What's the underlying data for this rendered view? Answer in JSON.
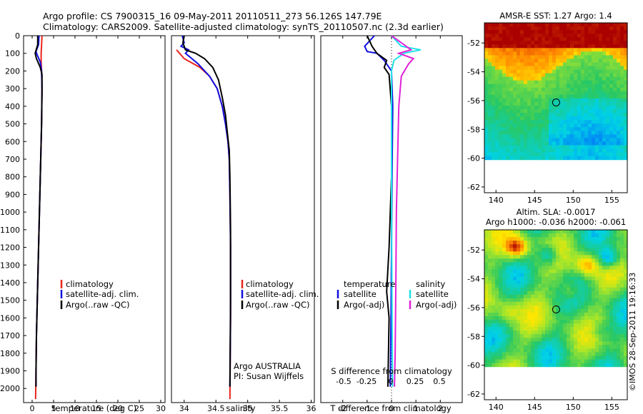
{
  "header": {
    "line1": "Argo profile: CS 7900315_16 09-May-2011 20110511_273 56.126S 147.79E",
    "line2": "Climatology: CARS2009. Satellite-adjusted climatology: synTS_20110507.nc (2.3d earlier)"
  },
  "footer": {
    "vertical_text": "©IMOS 28-Sep-2011 19:16:33"
  },
  "colors": {
    "red": "#e8241c",
    "blue": "#1010e0",
    "black": "#000000",
    "cyan": "#22e0e8",
    "magenta": "#e020d8"
  },
  "depth_axis": {
    "ylim": [
      0,
      2080
    ],
    "ticks": [
      0,
      100,
      200,
      300,
      400,
      500,
      600,
      700,
      800,
      900,
      1000,
      1100,
      1200,
      1300,
      1400,
      1500,
      1600,
      1700,
      1800,
      1900,
      2000
    ]
  },
  "chart_data": [
    {
      "type": "line",
      "id": "temperature",
      "xlabel": "temperature (deg C)",
      "xlim": [
        -2,
        31
      ],
      "ylim": [
        0,
        2080
      ],
      "x_ticks": [
        0,
        5,
        10,
        15,
        20,
        25,
        30
      ],
      "legend": [
        "climatology",
        "satellite-adj. clim.",
        "Argo(..raw -QC)"
      ],
      "series": [
        {
          "name": "climatology",
          "color": "red",
          "points": [
            [
              2.3,
              0
            ],
            [
              2.2,
              50
            ],
            [
              2.1,
              100
            ],
            [
              2.1,
              150
            ],
            [
              2.2,
              200
            ],
            [
              2.3,
              300
            ],
            [
              2.2,
              500
            ],
            [
              2.0,
              700
            ],
            [
              1.8,
              900
            ],
            [
              1.6,
              1100
            ],
            [
              1.4,
              1300
            ],
            [
              1.2,
              1500
            ],
            [
              1.0,
              1700
            ],
            [
              0.9,
              1900
            ],
            [
              0.8,
              2060
            ]
          ]
        },
        {
          "name": "satellite-adj. clim.",
          "color": "blue",
          "points": [
            [
              1.6,
              0
            ],
            [
              1.5,
              50
            ],
            [
              0.9,
              90
            ],
            [
              1.2,
              110
            ],
            [
              1.9,
              150
            ],
            [
              2.2,
              200
            ],
            [
              2.3,
              300
            ],
            [
              2.2,
              500
            ],
            [
              2.0,
              700
            ],
            [
              1.8,
              900
            ],
            [
              1.6,
              1100
            ],
            [
              1.4,
              1300
            ],
            [
              1.2,
              1500
            ],
            [
              1.0,
              1700
            ],
            [
              0.9,
              1900
            ],
            [
              0.9,
              1990
            ]
          ]
        },
        {
          "name": "Argo(..raw -QC)",
          "color": "black",
          "points": [
            [
              1.3,
              0
            ],
            [
              1.3,
              50
            ],
            [
              0.7,
              100
            ],
            [
              1.0,
              130
            ],
            [
              1.9,
              180
            ],
            [
              2.3,
              220
            ],
            [
              2.3,
              300
            ],
            [
              2.2,
              500
            ],
            [
              2.0,
              700
            ],
            [
              1.8,
              900
            ],
            [
              1.6,
              1100
            ],
            [
              1.4,
              1300
            ],
            [
              1.2,
              1500
            ],
            [
              1.0,
              1700
            ],
            [
              0.9,
              1900
            ],
            [
              0.9,
              1990
            ]
          ]
        }
      ]
    },
    {
      "type": "line",
      "id": "salinity",
      "xlabel": "salinity",
      "xlim": [
        33.8,
        36.05
      ],
      "ylim": [
        0,
        2080
      ],
      "x_ticks": [
        34,
        34.5,
        35,
        35.5,
        36
      ],
      "legend": [
        "climatology",
        "satellite-adj. clim.",
        "Argo(..raw -QC)"
      ],
      "annotation": [
        "Argo AUSTRALIA",
        "PI: Susan Wijffels"
      ],
      "series": [
        {
          "name": "climatology",
          "color": "red",
          "points": [
            [
              33.88,
              80
            ],
            [
              34.0,
              130
            ],
            [
              34.25,
              180
            ],
            [
              34.4,
              230
            ],
            [
              34.52,
              300
            ],
            [
              34.6,
              400
            ],
            [
              34.65,
              500
            ],
            [
              34.69,
              600
            ],
            [
              34.71,
              700
            ],
            [
              34.72,
              900
            ],
            [
              34.73,
              1200
            ],
            [
              34.73,
              1600
            ],
            [
              34.72,
              2060
            ]
          ]
        },
        {
          "name": "satellite-adj. clim.",
          "color": "blue",
          "points": [
            [
              33.97,
              0
            ],
            [
              34.0,
              40
            ],
            [
              33.95,
              60
            ],
            [
              34.07,
              80
            ],
            [
              34.02,
              100
            ],
            [
              34.22,
              160
            ],
            [
              34.4,
              230
            ],
            [
              34.52,
              300
            ],
            [
              34.6,
              400
            ],
            [
              34.65,
              500
            ],
            [
              34.69,
              600
            ],
            [
              34.71,
              700
            ],
            [
              34.72,
              900
            ],
            [
              34.73,
              1200
            ],
            [
              34.73,
              1600
            ],
            [
              34.72,
              1990
            ]
          ]
        },
        {
          "name": "Argo(..raw -QC)",
          "color": "black",
          "points": [
            [
              34.0,
              0
            ],
            [
              33.98,
              40
            ],
            [
              34.02,
              80
            ],
            [
              34.18,
              100
            ],
            [
              34.32,
              130
            ],
            [
              34.45,
              180
            ],
            [
              34.54,
              250
            ],
            [
              34.6,
              350
            ],
            [
              34.65,
              450
            ],
            [
              34.68,
              550
            ],
            [
              34.71,
              650
            ],
            [
              34.72,
              800
            ],
            [
              34.73,
              1100
            ],
            [
              34.73,
              1500
            ],
            [
              34.72,
              1990
            ]
          ]
        }
      ]
    },
    {
      "type": "line",
      "id": "difference",
      "xlabel": "T difference from climatology",
      "top_label": "S difference from climatology",
      "xlim": [
        -2.9,
        2.9
      ],
      "ylim": [
        0,
        2080
      ],
      "x_ticks": [
        -2,
        -1,
        0,
        1,
        2
      ],
      "top_ticks": [
        "-0.5",
        "-0.25",
        "0",
        "0.25",
        "0.5"
      ],
      "legend_titles": [
        "temperature",
        "salinity"
      ],
      "legend_left": [
        "satellite",
        "Argo(-adj)"
      ],
      "legend_right": [
        "satellite",
        "Argo(-adj)"
      ],
      "series": [
        {
          "name": "temperature satellite",
          "color": "blue",
          "points": [
            [
              -0.7,
              0
            ],
            [
              -1.1,
              60
            ],
            [
              -1.0,
              90
            ],
            [
              -0.6,
              100
            ],
            [
              -0.3,
              140
            ],
            [
              0.0,
              200
            ],
            [
              0.05,
              400
            ],
            [
              0.02,
              800
            ],
            [
              0.0,
              1200
            ],
            [
              -0.02,
              1600
            ],
            [
              -0.05,
              1990
            ]
          ]
        },
        {
          "name": "temperature Argo(-adj)",
          "color": "black",
          "points": [
            [
              -1.0,
              0
            ],
            [
              -0.8,
              60
            ],
            [
              -0.6,
              100
            ],
            [
              -0.2,
              140
            ],
            [
              -0.3,
              180
            ],
            [
              -0.1,
              220
            ],
            [
              0.0,
              400
            ],
            [
              0.0,
              800
            ],
            [
              -0.1,
              1200
            ],
            [
              -0.2,
              1450
            ],
            [
              -0.1,
              1600
            ],
            [
              -0.15,
              1990
            ]
          ]
        },
        {
          "name": "salinity satellite",
          "color": "cyan",
          "points": [
            [
              0.0,
              0
            ],
            [
              0.4,
              60
            ],
            [
              1.2,
              80
            ],
            [
              0.5,
              100
            ],
            [
              0.1,
              140
            ],
            [
              0.0,
              200
            ],
            [
              0.0,
              500
            ],
            [
              0.0,
              1000
            ],
            [
              0.02,
              1500
            ],
            [
              0.04,
              1990
            ]
          ]
        },
        {
          "name": "salinity Argo(-adj)",
          "color": "magenta",
          "points": [
            [
              0.0,
              0
            ],
            [
              0.6,
              60
            ],
            [
              0.8,
              80
            ],
            [
              0.3,
              100
            ],
            [
              0.9,
              130
            ],
            [
              0.7,
              160
            ],
            [
              0.4,
              230
            ],
            [
              0.3,
              400
            ],
            [
              0.25,
              700
            ],
            [
              0.2,
              1000
            ],
            [
              0.18,
              1400
            ],
            [
              0.15,
              1800
            ],
            [
              0.12,
              1990
            ]
          ]
        }
      ]
    },
    {
      "type": "heatmap",
      "id": "sst",
      "title": "AMSR-E SST: 1.27 Argo: 1.4",
      "x_ticks": [
        140,
        145,
        150,
        155
      ],
      "y_ticks": [
        -52,
        -54,
        -56,
        -58,
        -60,
        -62
      ],
      "xlim": [
        138.5,
        157
      ],
      "ylim": [
        -62.4,
        -50.6
      ],
      "data_ylim_bottom": -60.1,
      "argo_position": [
        147.79,
        -56.126
      ]
    },
    {
      "type": "heatmap",
      "id": "sla",
      "title_line1": "Altim. SLA: -0.0017",
      "title_line2": "Argo h1000: -0.036 h2000: -0.061",
      "x_ticks": [
        140,
        145,
        150,
        155
      ],
      "y_ticks": [
        -52,
        -54,
        -56,
        -58,
        -60,
        -62
      ],
      "xlim": [
        138.5,
        157
      ],
      "ylim": [
        -62.4,
        -50.6
      ],
      "data_ylim_bottom": -60.1,
      "argo_position": [
        147.79,
        -56.126
      ]
    }
  ]
}
